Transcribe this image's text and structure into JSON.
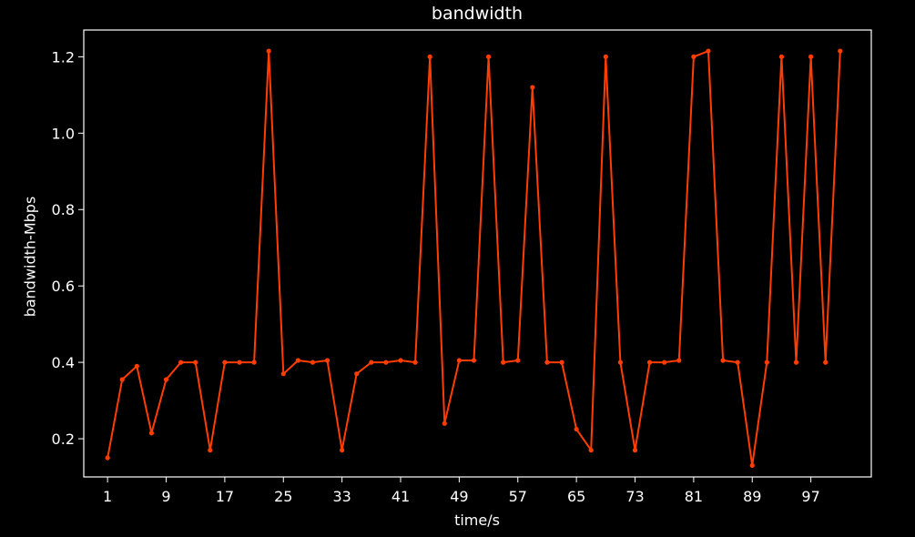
{
  "chart_data": {
    "type": "line",
    "title": "bandwidth",
    "xlabel": "time/s",
    "ylabel": "bandwidth-Mbps",
    "xlim": [
      -2.25,
      105.25
    ],
    "ylim": [
      0.1,
      1.27
    ],
    "xticks": [
      "1",
      "9",
      "17",
      "25",
      "33",
      "41",
      "49",
      "57",
      "65",
      "73",
      "81",
      "89",
      "97"
    ],
    "yticks": [
      "0.2",
      "0.4",
      "0.6",
      "0.8",
      "1.0",
      "1.2"
    ],
    "colors": {
      "background": "#000000",
      "axes": "#ffffff",
      "series": "#ff3d00"
    },
    "series": [
      {
        "name": "bandwidth",
        "x": [
          1,
          3,
          5,
          7,
          9,
          11,
          13,
          15,
          17,
          19,
          21,
          23,
          25,
          27,
          29,
          31,
          33,
          35,
          37,
          39,
          41,
          43,
          45,
          47,
          49,
          51,
          53,
          55,
          57,
          59,
          61,
          63,
          65,
          67,
          69,
          71,
          73,
          75,
          77,
          79,
          81,
          83,
          85,
          87,
          89,
          91,
          93,
          95,
          97,
          99,
          101
        ],
        "y": [
          0.15,
          0.355,
          0.39,
          0.215,
          0.355,
          0.4,
          0.4,
          0.17,
          0.4,
          0.4,
          0.4,
          1.215,
          0.37,
          0.405,
          0.4,
          0.405,
          0.17,
          0.37,
          0.4,
          0.4,
          0.405,
          0.4,
          1.2,
          0.24,
          0.405,
          0.405,
          1.2,
          0.4,
          0.405,
          1.12,
          0.4,
          0.4,
          0.225,
          0.17,
          1.2,
          0.4,
          0.17,
          0.4,
          0.4,
          0.405,
          1.2,
          1.215,
          0.405,
          0.4,
          0.13,
          0.4,
          1.2,
          0.4,
          1.2,
          0.4,
          1.215
        ]
      }
    ]
  }
}
